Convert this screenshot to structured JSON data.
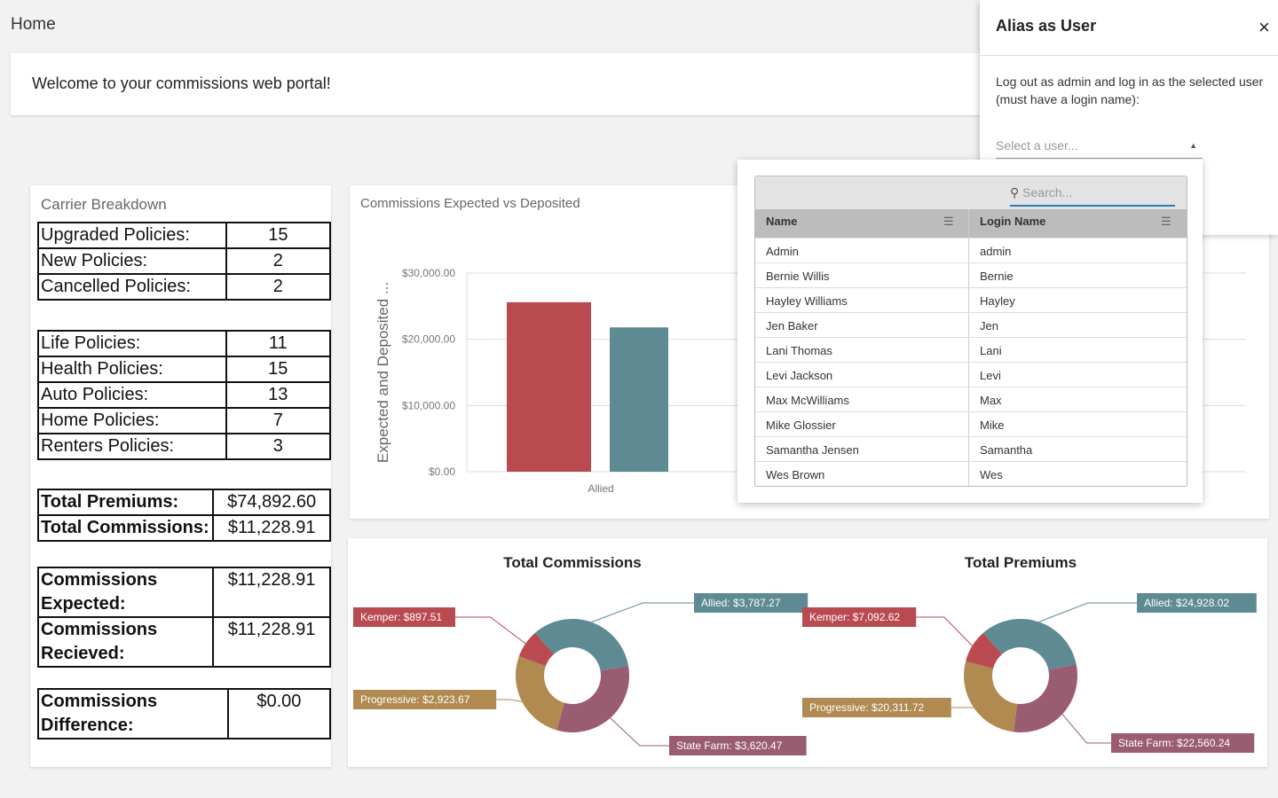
{
  "header": {
    "title": "Home"
  },
  "welcome": "Welcome to your commissions web portal!",
  "carrier_breakdown": {
    "title": "Carrier Breakdown",
    "tables": [
      [
        [
          "Upgraded Policies:",
          15
        ],
        [
          "New Policies:",
          2
        ],
        [
          "Cancelled Policies:",
          2
        ]
      ],
      [
        [
          "Life Policies:",
          11
        ],
        [
          "Health Policies:",
          15
        ],
        [
          "Auto Policies:",
          13
        ],
        [
          "Home Policies:",
          7
        ],
        [
          "Renters Policies:",
          3
        ]
      ],
      [
        [
          "Total Premiums:",
          "$74,892.60"
        ],
        [
          "Total Commissions:",
          "$11,228.91"
        ]
      ],
      [
        [
          "Commissions Expected:",
          "$11,228.91"
        ],
        [
          "Commissions Recieved:",
          "$11,228.91"
        ]
      ],
      [
        [
          "Commissions Difference:",
          "$0.00"
        ]
      ]
    ]
  },
  "commissions_chart": {
    "type": "bar",
    "title": "Commissions Expected vs Deposited",
    "y_label": "Expected and Deposited ...",
    "categories": [
      "Allied"
    ],
    "series": [
      {
        "color": "#b94a50",
        "values": [
          25600
        ]
      },
      {
        "color": "#5e8a94",
        "values": [
          21800
        ]
      }
    ],
    "ylim": [
      0,
      30000
    ],
    "yticks": [
      {
        "value": 0,
        "label": "$0.00"
      },
      {
        "value": 10000,
        "label": "$10,000.00"
      },
      {
        "value": 20000,
        "label": "$20,000.00"
      },
      {
        "value": 30000,
        "label": "$30,000.00"
      }
    ],
    "grid": true
  },
  "donuts": [
    {
      "type": "pie",
      "title": "Total Commissions",
      "values": [
        3787.27,
        3620.47,
        2923.67,
        897.51
      ],
      "value_labels": [
        "Allied: $3,787.27",
        "State Farm: $3,620.47",
        "Progressive: $2,923.67",
        "Kemper: $897.51"
      ],
      "colors": [
        "#5e8a94",
        "#9a5c70",
        "#b08a50",
        "#b94a50"
      ]
    },
    {
      "type": "pie",
      "title": "Total Premiums",
      "values": [
        24928.02,
        22560.24,
        20311.72,
        7092.62
      ],
      "value_labels": [
        "Allied: $24,928.02",
        "State Farm: $22,560.24",
        "Progressive: $20,311.72",
        "Kemper: $7,092.62"
      ],
      "colors": [
        "#5e8a94",
        "#9a5c70",
        "#b08a50",
        "#b94a50"
      ]
    }
  ],
  "alias_panel": {
    "title": "Alias as User",
    "description": "Log out as admin and log in as the selected user (must have a login name):",
    "select_placeholder": "Select a user..."
  },
  "user_picker": {
    "search_placeholder": "Search...",
    "columns": [
      "Name",
      "Login Name"
    ],
    "rows": [
      [
        "Admin",
        "admin"
      ],
      [
        "Bernie Willis",
        "Bernie"
      ],
      [
        "Hayley Williams",
        "Hayley"
      ],
      [
        "Jen Baker",
        "Jen"
      ],
      [
        "Lani Thomas",
        "Lani"
      ],
      [
        "Levi Jackson",
        "Levi"
      ],
      [
        "Max McWilliams",
        "Max"
      ],
      [
        "Mike Glossier",
        "Mike"
      ],
      [
        "Samantha Jensen",
        "Samantha"
      ],
      [
        "Wes Brown",
        "Wes"
      ]
    ]
  }
}
